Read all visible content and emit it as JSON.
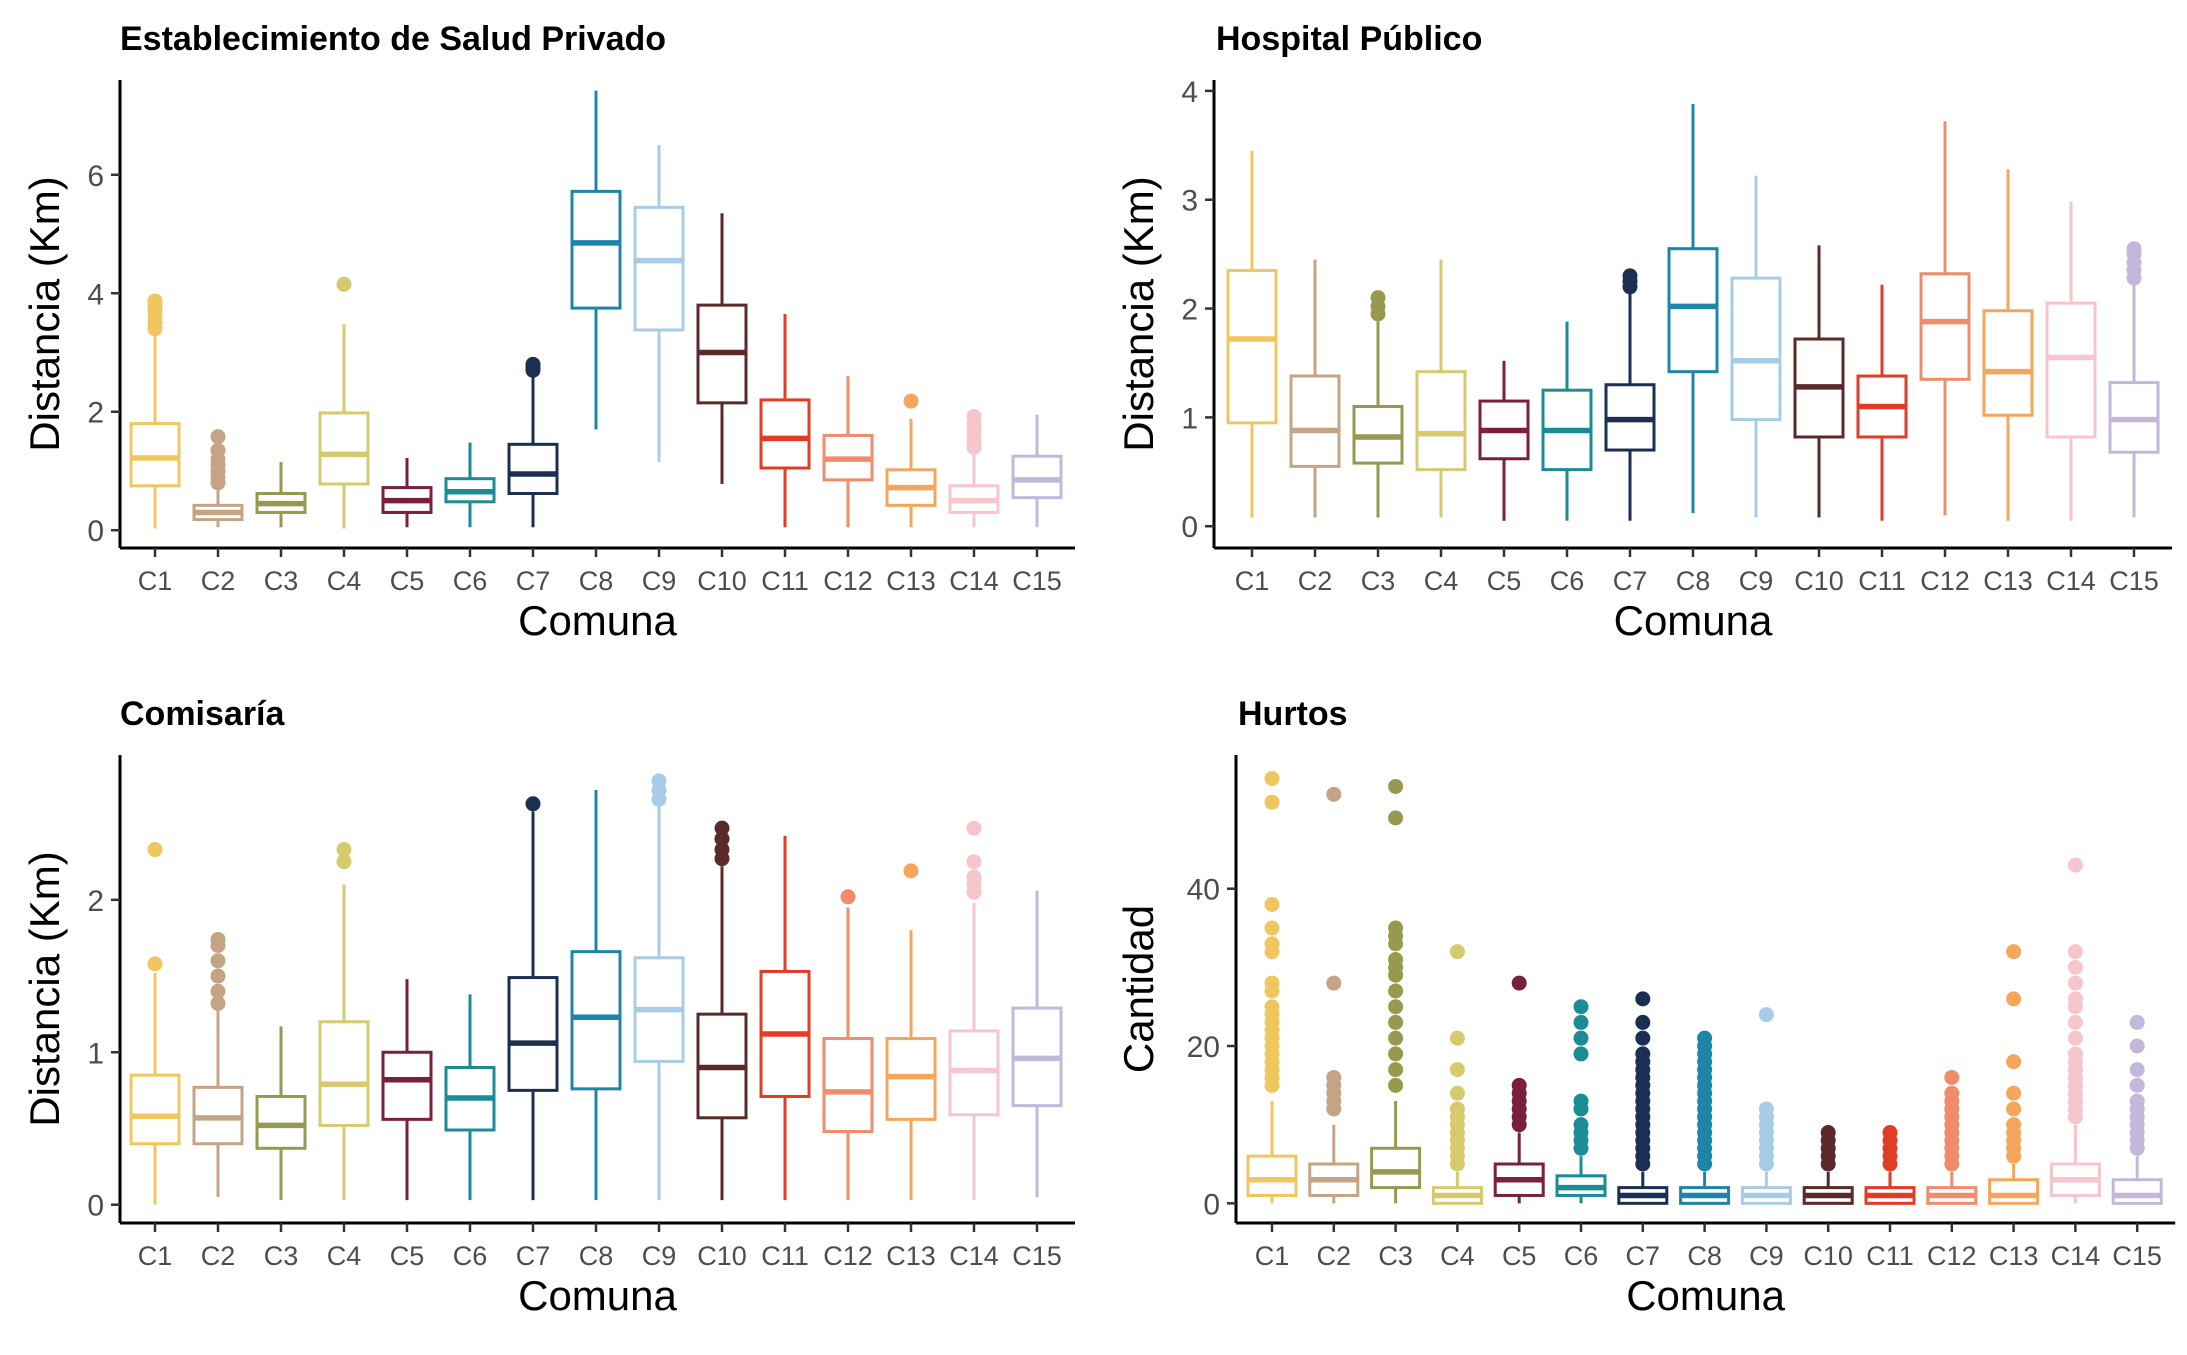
{
  "chart_data": [
    {
      "type": "boxplot",
      "title": "Establecimiento de Salud Privado",
      "xlabel": "Comuna",
      "ylabel": "Distancia (Km)",
      "ylim": [
        -0.3,
        7.6
      ],
      "yticks": [
        0,
        2,
        4,
        6
      ],
      "categories": [
        "C1",
        "C2",
        "C3",
        "C4",
        "C5",
        "C6",
        "C7",
        "C8",
        "C9",
        "C10",
        "C11",
        "C12",
        "C13",
        "C14",
        "C15"
      ],
      "colors": [
        "#F0C75E",
        "#C4A484",
        "#96994E",
        "#D5CB6E",
        "#7A1F3D",
        "#1A8C96",
        "#1B2F52",
        "#1C85A8",
        "#A8CCE6",
        "#5A2A2A",
        "#E03C26",
        "#F08C6C",
        "#F5A65B",
        "#F7C5CC",
        "#C3B8D9"
      ],
      "boxes": [
        {
          "min": 0.03,
          "q1": 0.75,
          "median": 1.22,
          "q3": 1.8,
          "max": 3.3,
          "outliers": [
            3.4,
            3.5,
            3.6,
            3.7,
            3.8,
            3.87
          ]
        },
        {
          "min": 0.05,
          "q1": 0.18,
          "median": 0.3,
          "q3": 0.42,
          "max": 0.75,
          "outliers": [
            0.8,
            0.9,
            1.0,
            1.1,
            1.2,
            1.35,
            1.58
          ]
        },
        {
          "min": 0.05,
          "q1": 0.3,
          "median": 0.45,
          "q3": 0.62,
          "max": 1.15,
          "outliers": []
        },
        {
          "min": 0.03,
          "q1": 0.78,
          "median": 1.28,
          "q3": 1.98,
          "max": 3.48,
          "outliers": [
            4.15
          ]
        },
        {
          "min": 0.05,
          "q1": 0.3,
          "median": 0.5,
          "q3": 0.72,
          "max": 1.22,
          "outliers": []
        },
        {
          "min": 0.05,
          "q1": 0.48,
          "median": 0.65,
          "q3": 0.87,
          "max": 1.48,
          "outliers": []
        },
        {
          "min": 0.05,
          "q1": 0.62,
          "median": 0.95,
          "q3": 1.45,
          "max": 2.65,
          "outliers": [
            2.7,
            2.75,
            2.8
          ]
        },
        {
          "min": 1.7,
          "q1": 3.75,
          "median": 4.85,
          "q3": 5.72,
          "max": 7.42,
          "outliers": []
        },
        {
          "min": 1.15,
          "q1": 3.38,
          "median": 4.55,
          "q3": 5.45,
          "max": 6.5,
          "outliers": []
        },
        {
          "min": 0.78,
          "q1": 2.15,
          "median": 3.0,
          "q3": 3.8,
          "max": 5.35,
          "outliers": []
        },
        {
          "min": 0.05,
          "q1": 1.05,
          "median": 1.55,
          "q3": 2.2,
          "max": 3.65,
          "outliers": []
        },
        {
          "min": 0.05,
          "q1": 0.85,
          "median": 1.2,
          "q3": 1.6,
          "max": 2.6,
          "outliers": []
        },
        {
          "min": 0.05,
          "q1": 0.42,
          "median": 0.72,
          "q3": 1.02,
          "max": 1.88,
          "outliers": [
            2.18
          ]
        },
        {
          "min": 0.05,
          "q1": 0.3,
          "median": 0.5,
          "q3": 0.75,
          "max": 1.3,
          "outliers": [
            1.4,
            1.5,
            1.6,
            1.7,
            1.8,
            1.92
          ]
        },
        {
          "min": 0.05,
          "q1": 0.55,
          "median": 0.85,
          "q3": 1.25,
          "max": 1.95,
          "outliers": []
        }
      ]
    },
    {
      "type": "boxplot",
      "title": "Hospital Público",
      "xlabel": "Comuna",
      "ylabel": "Distancia (Km)",
      "ylim": [
        -0.2,
        4.1
      ],
      "yticks": [
        0,
        1,
        2,
        3,
        4
      ],
      "categories": [
        "C1",
        "C2",
        "C3",
        "C4",
        "C5",
        "C6",
        "C7",
        "C8",
        "C9",
        "C10",
        "C11",
        "C12",
        "C13",
        "C14",
        "C15"
      ],
      "colors": [
        "#F0C75E",
        "#C4A484",
        "#96994E",
        "#D5CB6E",
        "#7A1F3D",
        "#1A8C96",
        "#1B2F52",
        "#1C85A8",
        "#A8CCE6",
        "#5A2A2A",
        "#E03C26",
        "#F08C6C",
        "#F5A65B",
        "#F7C5CC",
        "#C3B8D9"
      ],
      "boxes": [
        {
          "min": 0.08,
          "q1": 0.95,
          "median": 1.72,
          "q3": 2.35,
          "max": 3.45,
          "outliers": []
        },
        {
          "min": 0.08,
          "q1": 0.55,
          "median": 0.88,
          "q3": 1.38,
          "max": 2.45,
          "outliers": []
        },
        {
          "min": 0.08,
          "q1": 0.58,
          "median": 0.82,
          "q3": 1.1,
          "max": 1.88,
          "outliers": [
            1.95,
            2.02,
            2.1
          ]
        },
        {
          "min": 0.08,
          "q1": 0.52,
          "median": 0.85,
          "q3": 1.42,
          "max": 2.45,
          "outliers": []
        },
        {
          "min": 0.05,
          "q1": 0.62,
          "median": 0.88,
          "q3": 1.15,
          "max": 1.52,
          "outliers": []
        },
        {
          "min": 0.05,
          "q1": 0.52,
          "median": 0.88,
          "q3": 1.25,
          "max": 1.88,
          "outliers": []
        },
        {
          "min": 0.05,
          "q1": 0.7,
          "median": 0.98,
          "q3": 1.3,
          "max": 2.15,
          "outliers": [
            2.2,
            2.25,
            2.3
          ]
        },
        {
          "min": 0.12,
          "q1": 1.42,
          "median": 2.02,
          "q3": 2.55,
          "max": 3.88,
          "outliers": []
        },
        {
          "min": 0.08,
          "q1": 0.98,
          "median": 1.52,
          "q3": 2.28,
          "max": 3.22,
          "outliers": []
        },
        {
          "min": 0.08,
          "q1": 0.82,
          "median": 1.28,
          "q3": 1.72,
          "max": 2.58,
          "outliers": []
        },
        {
          "min": 0.05,
          "q1": 0.82,
          "median": 1.1,
          "q3": 1.38,
          "max": 2.22,
          "outliers": []
        },
        {
          "min": 0.1,
          "q1": 1.35,
          "median": 1.88,
          "q3": 2.32,
          "max": 3.72,
          "outliers": []
        },
        {
          "min": 0.05,
          "q1": 1.02,
          "median": 1.42,
          "q3": 1.98,
          "max": 3.28,
          "outliers": []
        },
        {
          "min": 0.05,
          "q1": 0.82,
          "median": 1.55,
          "q3": 2.05,
          "max": 2.98,
          "outliers": []
        },
        {
          "min": 0.08,
          "q1": 0.68,
          "median": 0.98,
          "q3": 1.32,
          "max": 2.22,
          "outliers": [
            2.28,
            2.35,
            2.42,
            2.5,
            2.55
          ]
        }
      ]
    },
    {
      "type": "boxplot",
      "title": "Comisaría",
      "xlabel": "Comuna",
      "ylabel": "Distancia (Km)",
      "ylim": [
        -0.12,
        2.95
      ],
      "yticks": [
        0,
        1,
        2
      ],
      "categories": [
        "C1",
        "C2",
        "C3",
        "C4",
        "C5",
        "C6",
        "C7",
        "C8",
        "C9",
        "C10",
        "C11",
        "C12",
        "C13",
        "C14",
        "C15"
      ],
      "colors": [
        "#F0C75E",
        "#C4A484",
        "#96994E",
        "#D5CB6E",
        "#7A1F3D",
        "#1A8C96",
        "#1B2F52",
        "#1C85A8",
        "#A8CCE6",
        "#5A2A2A",
        "#E03C26",
        "#F08C6C",
        "#F5A65B",
        "#F7C5CC",
        "#C3B8D9"
      ],
      "boxes": [
        {
          "min": 0.0,
          "q1": 0.4,
          "median": 0.58,
          "q3": 0.85,
          "max": 1.52,
          "outliers": [
            1.58,
            2.33
          ]
        },
        {
          "min": 0.05,
          "q1": 0.4,
          "median": 0.57,
          "q3": 0.77,
          "max": 1.28,
          "outliers": [
            1.32,
            1.4,
            1.5,
            1.6,
            1.7,
            1.74
          ]
        },
        {
          "min": 0.03,
          "q1": 0.37,
          "median": 0.52,
          "q3": 0.71,
          "max": 1.17,
          "outliers": []
        },
        {
          "min": 0.03,
          "q1": 0.52,
          "median": 0.79,
          "q3": 1.2,
          "max": 2.1,
          "outliers": [
            2.25,
            2.33
          ]
        },
        {
          "min": 0.03,
          "q1": 0.56,
          "median": 0.82,
          "q3": 1.0,
          "max": 1.48,
          "outliers": []
        },
        {
          "min": 0.03,
          "q1": 0.49,
          "median": 0.7,
          "q3": 0.9,
          "max": 1.38,
          "outliers": []
        },
        {
          "min": 0.03,
          "q1": 0.75,
          "median": 1.06,
          "q3": 1.49,
          "max": 2.58,
          "outliers": [
            2.63
          ]
        },
        {
          "min": 0.03,
          "q1": 0.76,
          "median": 1.23,
          "q3": 1.66,
          "max": 2.72,
          "outliers": []
        },
        {
          "min": 0.03,
          "q1": 0.94,
          "median": 1.28,
          "q3": 1.62,
          "max": 2.62,
          "outliers": [
            2.66,
            2.72,
            2.78
          ]
        },
        {
          "min": 0.03,
          "q1": 0.57,
          "median": 0.9,
          "q3": 1.25,
          "max": 2.22,
          "outliers": [
            2.27,
            2.33,
            2.4,
            2.47
          ]
        },
        {
          "min": 0.03,
          "q1": 0.71,
          "median": 1.12,
          "q3": 1.53,
          "max": 2.42,
          "outliers": []
        },
        {
          "min": 0.03,
          "q1": 0.48,
          "median": 0.74,
          "q3": 1.09,
          "max": 1.95,
          "outliers": [
            2.02
          ]
        },
        {
          "min": 0.03,
          "q1": 0.56,
          "median": 0.84,
          "q3": 1.09,
          "max": 1.8,
          "outliers": [
            2.19
          ]
        },
        {
          "min": 0.03,
          "q1": 0.59,
          "median": 0.88,
          "q3": 1.14,
          "max": 1.98,
          "outliers": [
            2.05,
            2.1,
            2.15,
            2.25,
            2.47
          ]
        },
        {
          "min": 0.05,
          "q1": 0.65,
          "median": 0.96,
          "q3": 1.29,
          "max": 2.06,
          "outliers": []
        }
      ]
    },
    {
      "type": "boxplot",
      "title": "Hurtos",
      "xlabel": "Comuna",
      "ylabel": "Cantidad",
      "ylim": [
        -2.5,
        57
      ],
      "yticks": [
        0,
        20,
        40
      ],
      "categories": [
        "C1",
        "C2",
        "C3",
        "C4",
        "C5",
        "C6",
        "C7",
        "C8",
        "C9",
        "C10",
        "C11",
        "C12",
        "C13",
        "C14",
        "C15"
      ],
      "colors": [
        "#F0C75E",
        "#C4A484",
        "#96994E",
        "#D5CB6E",
        "#7A1F3D",
        "#1A8C96",
        "#1B2F52",
        "#1C85A8",
        "#A8CCE6",
        "#5A2A2A",
        "#E03C26",
        "#F08C6C",
        "#F5A65B",
        "#F7C5CC",
        "#C3B8D9"
      ],
      "boxes": [
        {
          "min": 0,
          "q1": 1,
          "median": 3,
          "q3": 6,
          "max": 13,
          "outliers": [
            15,
            16,
            17,
            18,
            19,
            20,
            21,
            22,
            23,
            24,
            25,
            27,
            28,
            32,
            33,
            35,
            38,
            51,
            54
          ]
        },
        {
          "min": 0,
          "q1": 1,
          "median": 3,
          "q3": 5,
          "max": 10,
          "outliers": [
            12,
            13,
            14,
            15,
            16,
            28,
            52
          ]
        },
        {
          "min": 0,
          "q1": 2,
          "median": 4,
          "q3": 7,
          "max": 13,
          "outliers": [
            15,
            17,
            19,
            21,
            23,
            25,
            27,
            29,
            30,
            31,
            33,
            34,
            35,
            49,
            53
          ]
        },
        {
          "min": 0,
          "q1": 0,
          "median": 1,
          "q3": 2,
          "max": 4,
          "outliers": [
            5,
            6,
            7,
            8,
            9,
            10,
            11,
            12,
            14,
            17,
            21,
            32
          ]
        },
        {
          "min": 0,
          "q1": 1,
          "median": 3,
          "q3": 5,
          "max": 9,
          "outliers": [
            10,
            11,
            12,
            13,
            14,
            15,
            28
          ]
        },
        {
          "min": 0,
          "q1": 1,
          "median": 2,
          "q3": 3.5,
          "max": 6,
          "outliers": [
            7,
            8,
            9,
            10,
            12,
            13,
            19,
            21,
            23,
            25
          ]
        },
        {
          "min": 0,
          "q1": 0,
          "median": 1,
          "q3": 2,
          "max": 4,
          "outliers": [
            5,
            6,
            7,
            8,
            9,
            10,
            11,
            12,
            13,
            14,
            15,
            16,
            17,
            18,
            19,
            21,
            23,
            26
          ]
        },
        {
          "min": 0,
          "q1": 0,
          "median": 1,
          "q3": 2,
          "max": 4,
          "outliers": [
            5,
            6,
            7,
            8,
            9,
            10,
            11,
            12,
            13,
            14,
            15,
            16,
            17,
            18,
            19,
            20,
            21
          ]
        },
        {
          "min": 0,
          "q1": 0,
          "median": 1,
          "q3": 2,
          "max": 4,
          "outliers": [
            5,
            6,
            7,
            8,
            9,
            10,
            11,
            12,
            24
          ]
        },
        {
          "min": 0,
          "q1": 0,
          "median": 1,
          "q3": 2,
          "max": 4,
          "outliers": [
            5,
            6,
            7,
            8,
            9
          ]
        },
        {
          "min": 0,
          "q1": 0,
          "median": 1,
          "q3": 2,
          "max": 4,
          "outliers": [
            5,
            6,
            7,
            8,
            9
          ]
        },
        {
          "min": 0,
          "q1": 0,
          "median": 1,
          "q3": 2,
          "max": 4,
          "outliers": [
            5,
            6,
            7,
            8,
            9,
            10,
            11,
            12,
            13,
            14,
            16
          ]
        },
        {
          "min": 0,
          "q1": 0,
          "median": 1,
          "q3": 3,
          "max": 5,
          "outliers": [
            6,
            7,
            8,
            9,
            10,
            12,
            14,
            18,
            26,
            32
          ]
        },
        {
          "min": 0,
          "q1": 1,
          "median": 3,
          "q3": 5,
          "max": 10,
          "outliers": [
            11,
            12,
            13,
            14,
            15,
            16,
            17,
            18,
            19,
            21,
            23,
            25,
            26,
            28,
            30,
            32,
            43
          ]
        },
        {
          "min": 0,
          "q1": 0,
          "median": 1,
          "q3": 3,
          "max": 6,
          "outliers": [
            7,
            8,
            9,
            10,
            11,
            12,
            13,
            15,
            17,
            20,
            23
          ]
        }
      ]
    }
  ]
}
